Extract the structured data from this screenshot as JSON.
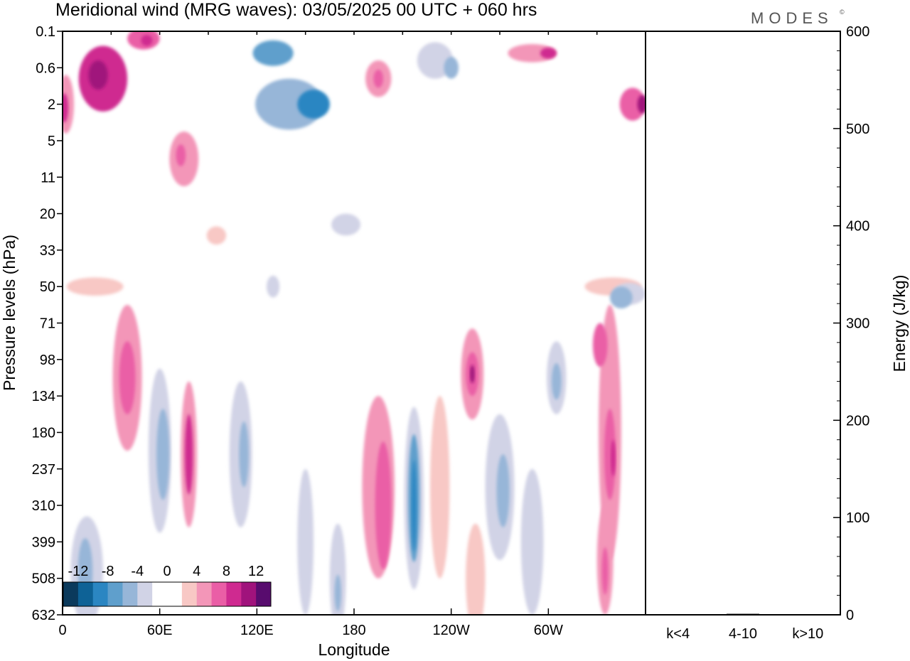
{
  "header": {
    "title": "Meridional wind (MRG waves):  03/05/2025  00 UTC  + 060 hrs",
    "logo": "MODES",
    "logo_mark": "©"
  },
  "chart_data": [
    {
      "type": "heatmap",
      "title": "Meridional wind (MRG waves):  03/05/2025  00 UTC  + 060 hrs",
      "xlabel": "Longitude",
      "ylabel": "Pressure levels (hPa)",
      "x_ticks": [
        "0",
        "60E",
        "120E",
        "180",
        "120W",
        "60W"
      ],
      "x_tick_values": [
        0,
        60,
        120,
        180,
        240,
        300
      ],
      "xlim": [
        0,
        360
      ],
      "y_ticks": [
        "0.1",
        "0.6",
        "2",
        "5",
        "11",
        "20",
        "33",
        "50",
        "71",
        "98",
        "134",
        "180",
        "237",
        "310",
        "399",
        "508",
        "632"
      ],
      "y_scale": "categorical pressure levels, top = 0.1 hPa, bottom = 632 hPa",
      "colorbar": {
        "labels": [
          "-12",
          "-8",
          "-4",
          "0",
          "4",
          "8",
          "12"
        ],
        "label_values": [
          -12,
          -8,
          -4,
          0,
          4,
          8,
          12
        ],
        "levels": [
          -14,
          -12,
          -10,
          -8,
          -6,
          -4,
          -2,
          0,
          2,
          4,
          6,
          8,
          10,
          12,
          14
        ],
        "colors": [
          "#0b3a5c",
          "#0e6296",
          "#2b86c2",
          "#5f9fcc",
          "#97b6d8",
          "#d1d3e6",
          "#ffffff",
          "#ffffff",
          "#f8c8c5",
          "#f396b8",
          "#ea5ea6",
          "#cf2a90",
          "#a0137c",
          "#580c6e"
        ],
        "placement": "bottom-left"
      },
      "features": [
        {
          "lon": 25,
          "level": 1.3,
          "w": 30,
          "h": 1.8,
          "value": 8
        },
        {
          "lon": 22,
          "level": 1.2,
          "w": 12,
          "h": 0.8,
          "value": 11
        },
        {
          "lon": 2,
          "level": 2.0,
          "w": 10,
          "h": 1.6,
          "value": 5
        },
        {
          "lon": 1,
          "level": 2.1,
          "w": 5,
          "h": 0.8,
          "value": 8
        },
        {
          "lon": 50,
          "level": 0.2,
          "w": 20,
          "h": 0.6,
          "value": 6
        },
        {
          "lon": 52,
          "level": 0.25,
          "w": 7,
          "h": 0.3,
          "value": 9
        },
        {
          "lon": 75,
          "level": 3.5,
          "w": 18,
          "h": 1.5,
          "value": 4
        },
        {
          "lon": 73,
          "level": 3.4,
          "w": 6,
          "h": 0.6,
          "value": 6
        },
        {
          "lon": 130,
          "level": 0.6,
          "w": 25,
          "h": 0.7,
          "value": -8
        },
        {
          "lon": 140,
          "level": 2.0,
          "w": 42,
          "h": 1.4,
          "value": -5
        },
        {
          "lon": 155,
          "level": 2.0,
          "w": 20,
          "h": 0.8,
          "value": -9
        },
        {
          "lon": 230,
          "level": 0.8,
          "w": 22,
          "h": 1.0,
          "value": -4
        },
        {
          "lon": 240,
          "level": 1.0,
          "w": 9,
          "h": 0.6,
          "value": -6
        },
        {
          "lon": 195,
          "level": 1.3,
          "w": 16,
          "h": 1.0,
          "value": 5
        },
        {
          "lon": 195,
          "level": 1.3,
          "w": 6,
          "h": 0.5,
          "value": 7
        },
        {
          "lon": 290,
          "level": 0.6,
          "w": 30,
          "h": 0.5,
          "value": 5
        },
        {
          "lon": 300,
          "level": 0.6,
          "w": 10,
          "h": 0.3,
          "value": 8
        },
        {
          "lon": 352,
          "level": 2.0,
          "w": 16,
          "h": 0.9,
          "value": 6
        },
        {
          "lon": 358,
          "level": 2.0,
          "w": 6,
          "h": 0.5,
          "value": 10
        },
        {
          "lon": 175,
          "level": 5.3,
          "w": 18,
          "h": 0.6,
          "value": -3
        },
        {
          "lon": 95,
          "level": 5.6,
          "w": 12,
          "h": 0.5,
          "value": 3
        },
        {
          "lon": 130,
          "level": 7.0,
          "w": 8,
          "h": 0.6,
          "value": -3
        },
        {
          "lon": 20,
          "level": 7.0,
          "w": 35,
          "h": 0.5,
          "value": 3
        },
        {
          "lon": 340,
          "level": 7.0,
          "w": 35,
          "h": 0.5,
          "value": 3
        },
        {
          "lon": 350,
          "level": 7.2,
          "w": 20,
          "h": 0.6,
          "value": -3
        },
        {
          "lon": 345,
          "level": 7.3,
          "w": 14,
          "h": 0.6,
          "value": -6
        },
        {
          "lon": 40,
          "level": 9.5,
          "w": 18,
          "h": 4.0,
          "value": 4
        },
        {
          "lon": 40,
          "level": 9.5,
          "w": 10,
          "h": 2.0,
          "value": 7
        },
        {
          "lon": 60,
          "level": 11.5,
          "w": 14,
          "h": 4.5,
          "value": -4
        },
        {
          "lon": 62,
          "level": 11.6,
          "w": 8,
          "h": 2.5,
          "value": -6
        },
        {
          "lon": 78,
          "level": 11.6,
          "w": 10,
          "h": 4.0,
          "value": 4
        },
        {
          "lon": 78,
          "level": 11.6,
          "w": 5,
          "h": 2.2,
          "value": 8
        },
        {
          "lon": 110,
          "level": 11.6,
          "w": 14,
          "h": 4.0,
          "value": -3
        },
        {
          "lon": 112,
          "level": 11.6,
          "w": 6,
          "h": 1.8,
          "value": -5
        },
        {
          "lon": 15,
          "level": 14.8,
          "w": 20,
          "h": 3.0,
          "value": -3
        },
        {
          "lon": 14,
          "level": 14.8,
          "w": 9,
          "h": 1.8,
          "value": -6
        },
        {
          "lon": 195,
          "level": 12.5,
          "w": 20,
          "h": 5.0,
          "value": 4
        },
        {
          "lon": 198,
          "level": 13.0,
          "w": 10,
          "h": 3.5,
          "value": 6
        },
        {
          "lon": 217,
          "level": 12.8,
          "w": 12,
          "h": 5.0,
          "value": -4
        },
        {
          "lon": 217,
          "level": 12.8,
          "w": 7,
          "h": 3.5,
          "value": -7
        },
        {
          "lon": 217,
          "level": 13.0,
          "w": 3,
          "h": 2.5,
          "value": -10
        },
        {
          "lon": 233,
          "level": 12.5,
          "w": 12,
          "h": 5.0,
          "value": 3
        },
        {
          "lon": 253,
          "level": 9.4,
          "w": 14,
          "h": 2.5,
          "value": 4
        },
        {
          "lon": 253,
          "level": 9.4,
          "w": 8,
          "h": 1.2,
          "value": 7
        },
        {
          "lon": 253,
          "level": 9.4,
          "w": 3,
          "h": 0.5,
          "value": 10
        },
        {
          "lon": 270,
          "level": 12.5,
          "w": 18,
          "h": 4.0,
          "value": -3
        },
        {
          "lon": 272,
          "level": 12.6,
          "w": 8,
          "h": 2.0,
          "value": -6
        },
        {
          "lon": 305,
          "level": 9.5,
          "w": 12,
          "h": 2.0,
          "value": -3
        },
        {
          "lon": 305,
          "level": 9.6,
          "w": 6,
          "h": 1.0,
          "value": -6
        },
        {
          "lon": 338,
          "level": 11.0,
          "w": 14,
          "h": 7.0,
          "value": 4
        },
        {
          "lon": 338,
          "level": 11.6,
          "w": 7,
          "h": 2.5,
          "value": 7
        },
        {
          "lon": 340,
          "level": 11.7,
          "w": 3,
          "h": 1.0,
          "value": 9
        },
        {
          "lon": 332,
          "level": 8.6,
          "w": 9,
          "h": 1.2,
          "value": 6
        },
        {
          "lon": 335,
          "level": 14.5,
          "w": 10,
          "h": 3.0,
          "value": 4
        },
        {
          "lon": 335,
          "level": 14.8,
          "w": 4,
          "h": 1.3,
          "value": 6
        },
        {
          "lon": 150,
          "level": 14.0,
          "w": 10,
          "h": 4.0,
          "value": -3
        },
        {
          "lon": 170,
          "level": 15.0,
          "w": 10,
          "h": 3.0,
          "value": -3
        },
        {
          "lon": 170,
          "level": 15.4,
          "w": 4,
          "h": 1.0,
          "value": -5
        },
        {
          "lon": 255,
          "level": 15.0,
          "w": 12,
          "h": 3.0,
          "value": 3
        },
        {
          "lon": 290,
          "level": 14.0,
          "w": 14,
          "h": 4.0,
          "value": -3
        }
      ]
    },
    {
      "type": "bar",
      "categories": [
        "k<4",
        "4-10",
        "k>10"
      ],
      "values": [
        0,
        1,
        0
      ],
      "ylabel": "Energy (J/kg)",
      "y_ticks": [
        "0",
        "100",
        "200",
        "300",
        "400",
        "500",
        "600"
      ],
      "ylim": [
        0,
        600
      ],
      "axis_side": "right"
    }
  ]
}
